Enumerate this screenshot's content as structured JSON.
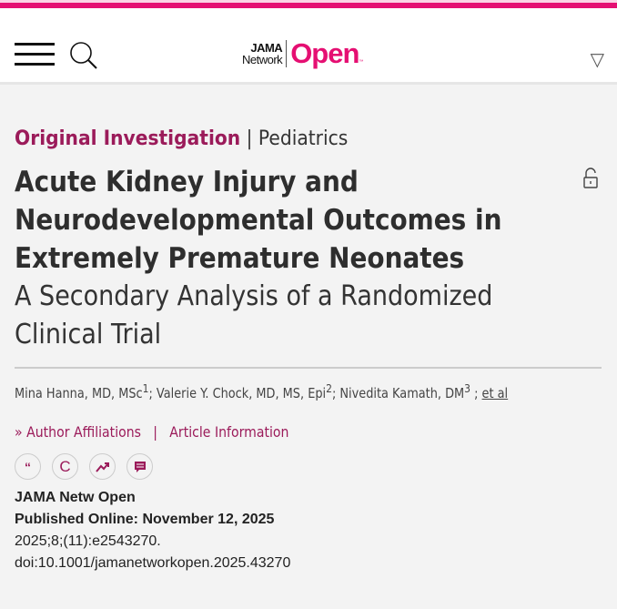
{
  "brand": {
    "logo_top": "JAMA",
    "logo_bottom": "Network",
    "logo_main": "Open",
    "logo_tm": "™",
    "accent": "#e50f72",
    "link_color": "#9b1b5a"
  },
  "article": {
    "category": "Original Investigation",
    "separator": "|",
    "section": "Pediatrics",
    "title": "Acute Kidney Injury and Neurodevelopmental Outcomes in Extremely Premature Neonates",
    "subtitle": "A Secondary Analysis of a Randomized Clinical Trial",
    "authors": [
      {
        "name": "Mina Hanna, MD, MSc",
        "sup": "1"
      },
      {
        "name": "Valerie Y. Chock, MD, MS, Epi",
        "sup": "2"
      },
      {
        "name": "Nivedita Kamath, DM",
        "sup": "3"
      }
    ],
    "et_al": "et al",
    "affiliations_link": "Author Affiliations",
    "info_link": "Article Information",
    "chevron": "»",
    "journal": "JAMA Netw Open",
    "published": "Published Online: November 12, 2025",
    "citation": "2025;8;(11):e2543270.",
    "doi": "doi:10.1001/jamanetworkopen.2025.43270"
  },
  "icons": [
    "quote-icon",
    "copyright-icon",
    "trending-icon",
    "comment-icon"
  ]
}
